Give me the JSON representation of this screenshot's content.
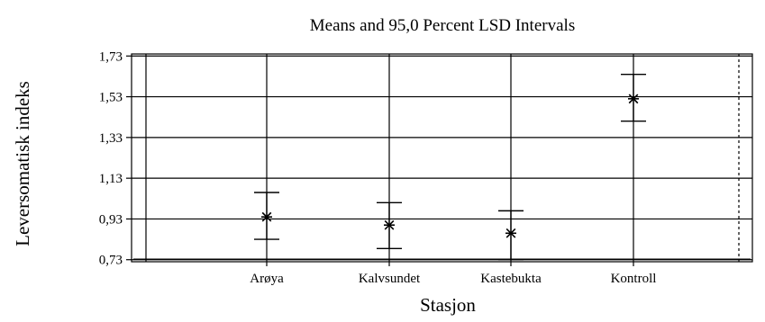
{
  "chart_data": {
    "type": "scatter",
    "title": "Means and 95,0 Percent LSD Intervals",
    "xlabel": "Stasjon",
    "ylabel": "Leversomatisk indeks",
    "categories": [
      "Arøya",
      "Kalvsundet",
      "Kastebukta",
      "Kontroll"
    ],
    "y_ticks": [
      "0,73",
      "0,93",
      "1,13",
      "1,33",
      "1,53",
      "1,73"
    ],
    "ylim": [
      0.72,
      1.74
    ],
    "grid": true,
    "legend": "none",
    "series": [
      {
        "means": [
          0.94,
          0.9,
          0.86,
          1.52
        ],
        "lower": [
          0.83,
          0.785,
          0.73,
          1.41
        ],
        "upper": [
          1.06,
          1.01,
          0.97,
          1.64
        ]
      }
    ]
  }
}
